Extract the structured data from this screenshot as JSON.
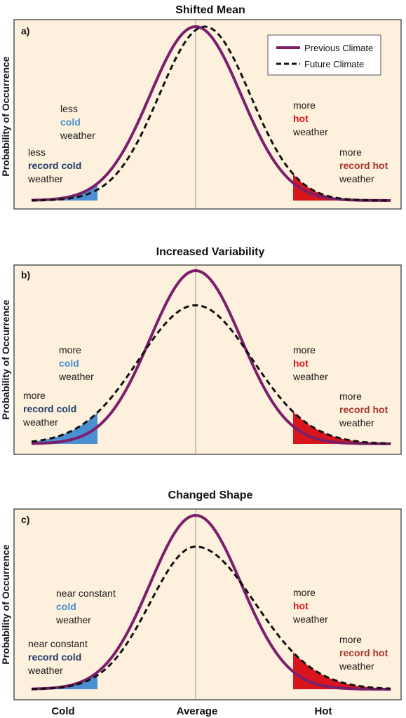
{
  "colors": {
    "panel_bg": "#fdf0dc",
    "panel_border": "#555555",
    "previous_climate": "#7b1f6a",
    "future_climate": "#111111",
    "average_line": "#999999",
    "cold": "#4a8fd1",
    "record_cold": "#1f3b6b",
    "hot": "#e0161f",
    "record_hot": "#a8352c",
    "hot_fill": "#d8141c",
    "cold_fill": "#4a8fd1"
  },
  "legend": {
    "previous": "Previous Climate",
    "future": "Future Climate"
  },
  "x_ticks": {
    "cold": "Cold",
    "average": "Average",
    "hot": "Hot"
  },
  "chart_data": [
    {
      "type": "line",
      "title": "Shifted Mean",
      "panel_label": "a)",
      "ylabel": "Probability of Occurrence",
      "series": [
        {
          "name": "Previous Climate",
          "mean": 0.0,
          "sd": 1.0,
          "peak": 1.0
        },
        {
          "name": "Future Climate",
          "mean": 0.2,
          "sd": 1.0,
          "peak": 1.0
        }
      ],
      "annotations": {
        "cold": [
          "less",
          "cold",
          "weather"
        ],
        "record_cold": [
          "less",
          "record cold",
          "weather"
        ],
        "hot": [
          "more",
          "hot",
          "weather"
        ],
        "record_hot": [
          "more",
          "record hot",
          "weather"
        ]
      }
    },
    {
      "type": "line",
      "title": "Increased Variability",
      "panel_label": "b)",
      "ylabel": "Probability of Occurrence",
      "series": [
        {
          "name": "Previous Climate",
          "mean": 0.0,
          "sd": 1.0,
          "peak": 1.0
        },
        {
          "name": "Future Climate",
          "mean": 0.0,
          "sd": 1.25,
          "peak": 0.8
        }
      ],
      "annotations": {
        "cold": [
          "more",
          "cold",
          "weather"
        ],
        "record_cold": [
          "more",
          "record cold",
          "weather"
        ],
        "hot": [
          "more",
          "hot",
          "weather"
        ],
        "record_hot": [
          "more",
          "record hot",
          "weather"
        ]
      }
    },
    {
      "type": "line",
      "title": "Changed Shape",
      "panel_label": "c)",
      "ylabel": "Probability of Occurrence",
      "series": [
        {
          "name": "Previous Climate",
          "mean": 0.0,
          "sd": 1.0,
          "peak": 1.0
        },
        {
          "name": "Future Climate",
          "mean": 0.0,
          "sd_left": 1.0,
          "sd_right": 1.3,
          "peak": 0.82
        }
      ],
      "annotations": {
        "cold": [
          "near constant",
          "cold",
          "weather"
        ],
        "record_cold": [
          "near constant",
          "record cold",
          "weather"
        ],
        "hot": [
          "more",
          "hot",
          "weather"
        ],
        "record_hot": [
          "more",
          "record hot",
          "weather"
        ]
      }
    }
  ]
}
